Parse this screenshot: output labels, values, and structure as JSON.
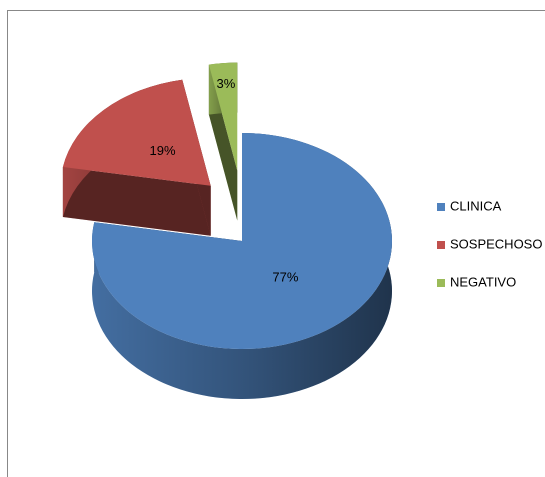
{
  "chart_data": {
    "type": "pie",
    "categories": [
      "CLINICA",
      "SOSPECHOSO",
      "NEGATIVO"
    ],
    "values": [
      77,
      19,
      3
    ],
    "value_labels": [
      "77%",
      "19%",
      "3%"
    ],
    "colors": [
      "#4f81bd",
      "#c0504d",
      "#9bbb59"
    ],
    "legend": "right"
  }
}
